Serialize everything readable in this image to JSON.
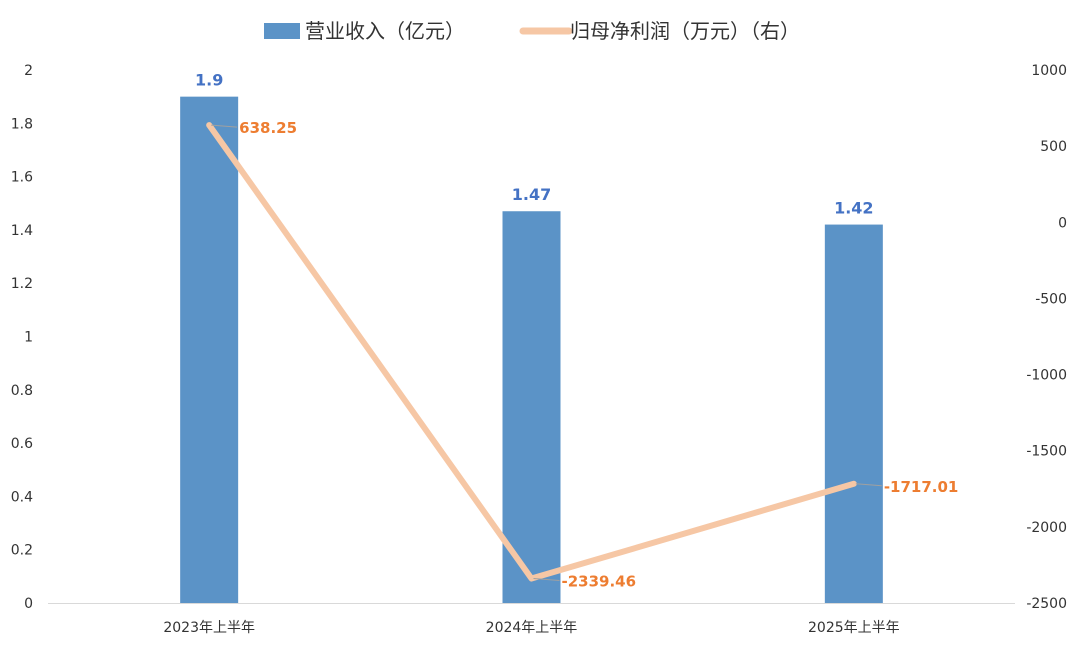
{
  "chart_data": {
    "type": "bar",
    "categories": [
      "2023年上半年",
      "2024年上半年",
      "2025年上半年"
    ],
    "series": [
      {
        "name": "营业收入（亿元）",
        "type": "bar",
        "axis": "left",
        "values": [
          1.9,
          1.47,
          1.42
        ],
        "labels": [
          "1.9",
          "1.47",
          "1.42"
        ]
      },
      {
        "name": "归母净利润（万元）（右）",
        "type": "line",
        "axis": "right",
        "values": [
          638.25,
          -2339.46,
          -1717.01
        ],
        "labels": [
          "638.25",
          "-2339.46",
          "-1717.01"
        ]
      }
    ],
    "y_left": {
      "min": 0,
      "max": 2,
      "ticks": [
        "0",
        "0.2",
        "0.4",
        "0.6",
        "0.8",
        "1",
        "1.2",
        "1.4",
        "1.6",
        "1.8",
        "2"
      ]
    },
    "y_right": {
      "min": -2500,
      "max": 1000,
      "ticks": [
        "-2500",
        "-2000",
        "-1500",
        "-1000",
        "-500",
        "0",
        "500",
        "1000"
      ]
    },
    "legend_position": "top-center",
    "grid": false
  },
  "colors": {
    "bar": "#5B93C7",
    "bar_label": "#4472C4",
    "line": "#F6C7A5",
    "line_label": "#ED7D31",
    "leader": "#A0A0A0",
    "axis": "#D9D9D9",
    "text": "#333333"
  }
}
